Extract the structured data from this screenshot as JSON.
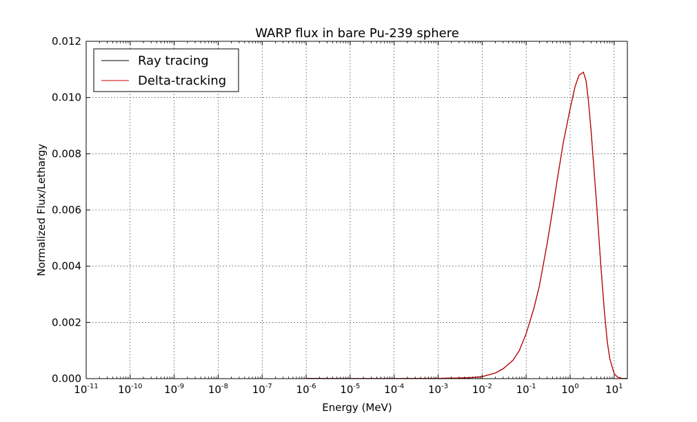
{
  "chart_data": {
    "type": "line",
    "title": "WARP flux in bare Pu-239 sphere",
    "xlabel": "Energy (MeV)",
    "ylabel": "Normalized Flux/Lethargy",
    "xscale": "log",
    "xlim": [
      1e-11,
      20
    ],
    "ylim": [
      0,
      0.012
    ],
    "grid": true,
    "legend_position": "top-left",
    "x_ticks": [
      {
        "base": "10",
        "exp": "-11",
        "value": 1e-11
      },
      {
        "base": "10",
        "exp": "-10",
        "value": 1e-10
      },
      {
        "base": "10",
        "exp": "-9",
        "value": 1e-09
      },
      {
        "base": "10",
        "exp": "-8",
        "value": 1e-08
      },
      {
        "base": "10",
        "exp": "-7",
        "value": 1e-07
      },
      {
        "base": "10",
        "exp": "-6",
        "value": 1e-06
      },
      {
        "base": "10",
        "exp": "-5",
        "value": 1e-05
      },
      {
        "base": "10",
        "exp": "-4",
        "value": 0.0001
      },
      {
        "base": "10",
        "exp": "-3",
        "value": 0.001
      },
      {
        "base": "10",
        "exp": "-2",
        "value": 0.01
      },
      {
        "base": "10",
        "exp": "-1",
        "value": 0.1
      },
      {
        "base": "10",
        "exp": "0",
        "value": 1
      },
      {
        "base": "10",
        "exp": "1",
        "value": 10
      }
    ],
    "y_ticks": [
      "0.000",
      "0.002",
      "0.004",
      "0.006",
      "0.008",
      "0.010",
      "0.012"
    ],
    "x": [
      1e-06,
      1e-05,
      0.0001,
      0.001,
      0.005,
      0.01,
      0.02,
      0.03,
      0.05,
      0.07,
      0.1,
      0.15,
      0.2,
      0.3,
      0.4,
      0.5,
      0.7,
      1.0,
      1.3,
      1.6,
      2.0,
      2.3,
      2.6,
      3.0,
      4.0,
      5.0,
      6.0,
      7.0,
      8.0,
      10.0,
      12.0,
      15.0,
      20.0
    ],
    "series": [
      {
        "name": "Ray tracing",
        "color": "#000000",
        "values": [
          1e-05,
          5e-06,
          3e-06,
          1e-05,
          3e-05,
          7e-05,
          0.0002,
          0.00035,
          0.00065,
          0.001,
          0.0016,
          0.0025,
          0.0033,
          0.0048,
          0.006,
          0.007,
          0.0084,
          0.0096,
          0.0104,
          0.0108,
          0.0109,
          0.0106,
          0.0099,
          0.0088,
          0.0062,
          0.004,
          0.0024,
          0.0013,
          0.0007,
          0.00018,
          5e-05,
          1e-05,
          0.0
        ]
      },
      {
        "name": "Delta-tracking",
        "color": "#cc0000",
        "values": [
          5e-06,
          5e-06,
          3e-06,
          1e-05,
          3e-05,
          7e-05,
          0.0002,
          0.00035,
          0.00065,
          0.001,
          0.0016,
          0.0025,
          0.0033,
          0.0048,
          0.006,
          0.007,
          0.0084,
          0.0096,
          0.0104,
          0.0108,
          0.0109,
          0.0106,
          0.0099,
          0.0088,
          0.0062,
          0.004,
          0.0024,
          0.0013,
          0.0007,
          0.00018,
          5e-05,
          1e-05,
          0.0
        ]
      }
    ]
  }
}
